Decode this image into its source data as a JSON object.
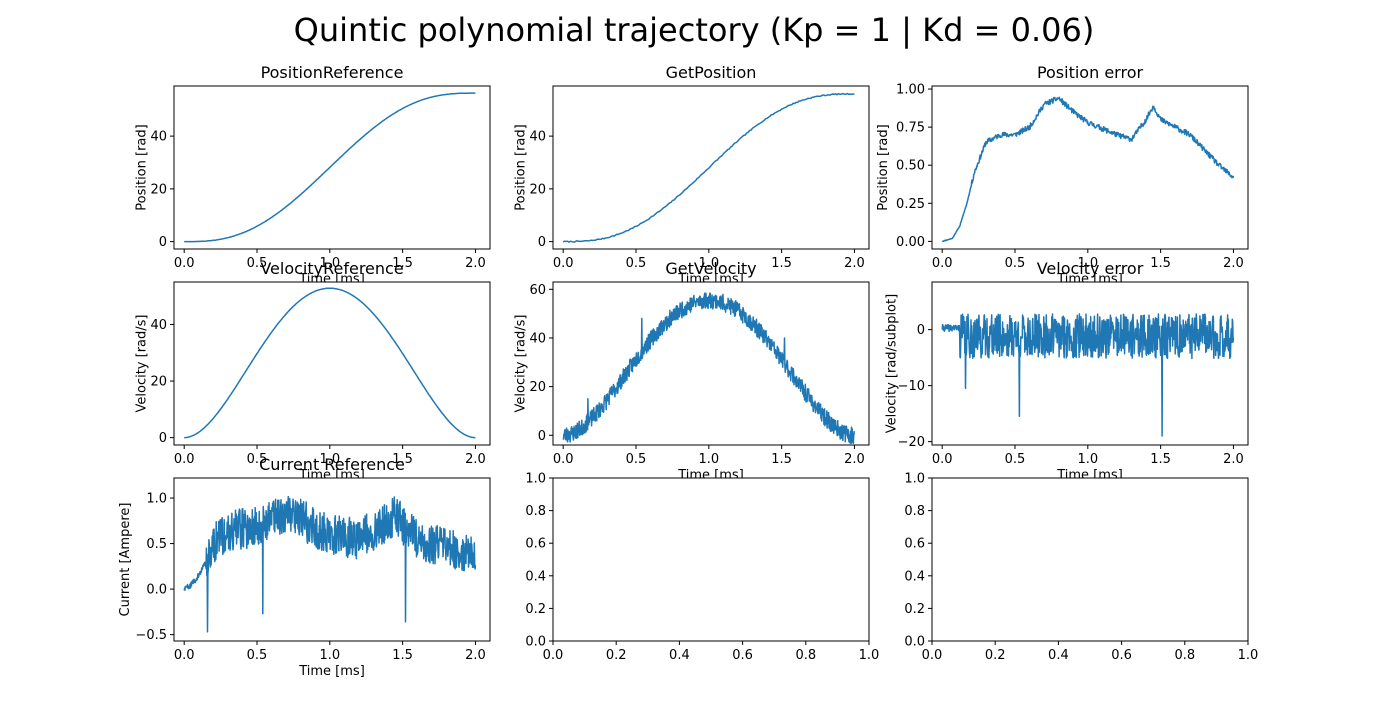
{
  "figure": {
    "title": "Quintic polynomial trajectory (Kp = 1 | Kd = 0.06)",
    "line_color": "#1f77b4"
  },
  "chart_data": [
    {
      "type": "line",
      "title": "PositionReference",
      "xlabel": "Time [ms]",
      "ylabel": "Position [rad]",
      "xlim": [
        -0.07,
        2.1
      ],
      "ylim": [
        -2.8,
        59
      ],
      "xticks": [
        0.0,
        0.5,
        1.0,
        1.5,
        2.0
      ],
      "xtick_labels": [
        "0.0",
        "0.5",
        "1.0",
        "1.5",
        "2.0"
      ],
      "yticks": [
        0,
        20,
        40
      ],
      "ytick_labels": [
        "0",
        "20",
        "40"
      ],
      "grid": false,
      "signal": "position_ref",
      "series": [
        {
          "x_start": 0.0,
          "x_end": 2.0,
          "peak": 56.3
        }
      ]
    },
    {
      "type": "line",
      "title": "GetPosition",
      "xlabel": "Time [ms]",
      "ylabel": "Position [rad]",
      "xlim": [
        -0.07,
        2.1
      ],
      "ylim": [
        -2.8,
        59
      ],
      "xticks": [
        0.0,
        0.5,
        1.0,
        1.5,
        2.0
      ],
      "xtick_labels": [
        "0.0",
        "0.5",
        "1.0",
        "1.5",
        "2.0"
      ],
      "yticks": [
        0,
        20,
        40
      ],
      "ytick_labels": [
        "0",
        "20",
        "40"
      ],
      "grid": false,
      "signal": "position_measured",
      "series": [
        {
          "x_start": 0.0,
          "x_end": 2.0,
          "peak": 56.0
        }
      ]
    },
    {
      "type": "line",
      "title": "Position error",
      "xlabel": "Time [ms]",
      "ylabel": "Position [rad]",
      "xlim": [
        -0.07,
        2.1
      ],
      "ylim": [
        -0.05,
        1.02
      ],
      "xticks": [
        0.0,
        0.5,
        1.0,
        1.5,
        2.0
      ],
      "xtick_labels": [
        "0.0",
        "0.5",
        "1.0",
        "1.5",
        "2.0"
      ],
      "yticks": [
        0.0,
        0.25,
        0.5,
        0.75,
        1.0
      ],
      "ytick_labels": [
        "0.00",
        "0.25",
        "0.50",
        "0.75",
        "1.00"
      ],
      "grid": false,
      "signal": "position_error",
      "series": [
        {
          "x": [
            0.0,
            0.07,
            0.12,
            0.17,
            0.22,
            0.3,
            0.4,
            0.5,
            0.6,
            0.7,
            0.8,
            0.9,
            1.0,
            1.1,
            1.2,
            1.3,
            1.4,
            1.45,
            1.5,
            1.6,
            1.7,
            1.8,
            1.9,
            2.0
          ],
          "y": [
            0.0,
            0.02,
            0.1,
            0.25,
            0.45,
            0.65,
            0.7,
            0.7,
            0.75,
            0.9,
            0.94,
            0.85,
            0.78,
            0.74,
            0.7,
            0.67,
            0.8,
            0.89,
            0.8,
            0.75,
            0.7,
            0.6,
            0.5,
            0.42
          ]
        }
      ]
    },
    {
      "type": "line",
      "title": "VelocityReference",
      "xlabel": "Time [ms]",
      "ylabel": "Velocity [rad/s]",
      "xlim": [
        -0.07,
        2.1
      ],
      "ylim": [
        -2.6,
        55
      ],
      "xticks": [
        0.0,
        0.5,
        1.0,
        1.5,
        2.0
      ],
      "xtick_labels": [
        "0.0",
        "0.5",
        "1.0",
        "1.5",
        "2.0"
      ],
      "yticks": [
        0,
        20,
        40
      ],
      "ytick_labels": [
        "0",
        "20",
        "40"
      ],
      "grid": false,
      "signal": "velocity_ref",
      "series": [
        {
          "x_start": 0.0,
          "x_end": 2.0,
          "peak": 52.8
        }
      ]
    },
    {
      "type": "line",
      "title": "GetVelocity",
      "xlabel": "Time [ms]",
      "ylabel": "Velocity [rad/s]",
      "xlim": [
        -0.07,
        2.1
      ],
      "ylim": [
        -4,
        63
      ],
      "xticks": [
        0.0,
        0.5,
        1.0,
        1.5,
        2.0
      ],
      "xtick_labels": [
        "0.0",
        "0.5",
        "1.0",
        "1.5",
        "2.0"
      ],
      "yticks": [
        0,
        20,
        40,
        60
      ],
      "ytick_labels": [
        "0",
        "20",
        "40",
        "60"
      ],
      "grid": false,
      "signal": "velocity_measured",
      "series": [
        {
          "x_start": 0.0,
          "x_end": 2.0,
          "peak": 55.5,
          "spikes": [
            {
              "x": 0.17,
              "y": 15
            },
            {
              "x": 0.54,
              "y": 48
            },
            {
              "x": 1.52,
              "y": 40
            }
          ]
        }
      ]
    },
    {
      "type": "line",
      "title": "Velocity error",
      "xlabel": "Time [ms]",
      "ylabel": "Velocity [rad/subplot]",
      "xlim": [
        -0.07,
        2.1
      ],
      "ylim": [
        -20.6,
        8.5
      ],
      "xticks": [
        0.0,
        0.5,
        1.0,
        1.5,
        2.0
      ],
      "xtick_labels": [
        "0.0",
        "0.5",
        "1.0",
        "1.5",
        "2.0"
      ],
      "yticks": [
        -20,
        -10,
        0
      ],
      "ytick_labels": [
        "−20",
        "−10",
        "0"
      ],
      "grid": false,
      "signal": "velocity_error",
      "series": [
        {
          "x_start": 0.0,
          "x_end": 2.0,
          "spikes": [
            {
              "x": 0.16,
              "y": -10.5
            },
            {
              "x": 0.53,
              "y": -15.5
            },
            {
              "x": 1.51,
              "y": -19
            }
          ]
        }
      ]
    },
    {
      "type": "line",
      "title": "Current Reference",
      "xlabel": "Time [ms]",
      "ylabel": "Current [Ampere]",
      "xlim": [
        -0.07,
        2.1
      ],
      "ylim": [
        -0.57,
        1.22
      ],
      "xticks": [
        0.0,
        0.5,
        1.0,
        1.5,
        2.0
      ],
      "xtick_labels": [
        "0.0",
        "0.5",
        "1.0",
        "1.5",
        "2.0"
      ],
      "yticks": [
        -0.5,
        0.0,
        0.5,
        1.0
      ],
      "ytick_labels": [
        "−0.5",
        "0.0",
        "0.5",
        "1.0"
      ],
      "grid": false,
      "signal": "current_ref",
      "series": [
        {
          "x_start": 0.0,
          "x_end": 2.0,
          "spikes": [
            {
              "x": 0.16,
              "y": -0.47
            },
            {
              "x": 0.54,
              "y": -0.27
            },
            {
              "x": 1.52,
              "y": -0.36
            }
          ]
        }
      ]
    },
    {
      "type": "line",
      "title": "",
      "xlabel": "",
      "ylabel": "",
      "xlim": [
        0,
        1
      ],
      "ylim": [
        0,
        1
      ],
      "xticks": [
        0.0,
        0.2,
        0.4,
        0.6,
        0.8,
        1.0
      ],
      "xtick_labels": [
        "0.0",
        "0.2",
        "0.4",
        "0.6",
        "0.8",
        "1.0"
      ],
      "yticks": [
        0.0,
        0.2,
        0.4,
        0.6,
        0.8,
        1.0
      ],
      "ytick_labels": [
        "0.0",
        "0.2",
        "0.4",
        "0.6",
        "0.8",
        "1.0"
      ],
      "grid": false,
      "signal": "none",
      "series": []
    },
    {
      "type": "line",
      "title": "",
      "xlabel": "",
      "ylabel": "",
      "xlim": [
        0,
        1
      ],
      "ylim": [
        0,
        1
      ],
      "xticks": [
        0.0,
        0.2,
        0.4,
        0.6,
        0.8,
        1.0
      ],
      "xtick_labels": [
        "0.0",
        "0.2",
        "0.4",
        "0.6",
        "0.8",
        "1.0"
      ],
      "yticks": [
        0.0,
        0.2,
        0.4,
        0.6,
        0.8,
        1.0
      ],
      "ytick_labels": [
        "0.0",
        "0.2",
        "0.4",
        "0.6",
        "0.8",
        "1.0"
      ],
      "grid": false,
      "signal": "none",
      "series": []
    }
  ]
}
